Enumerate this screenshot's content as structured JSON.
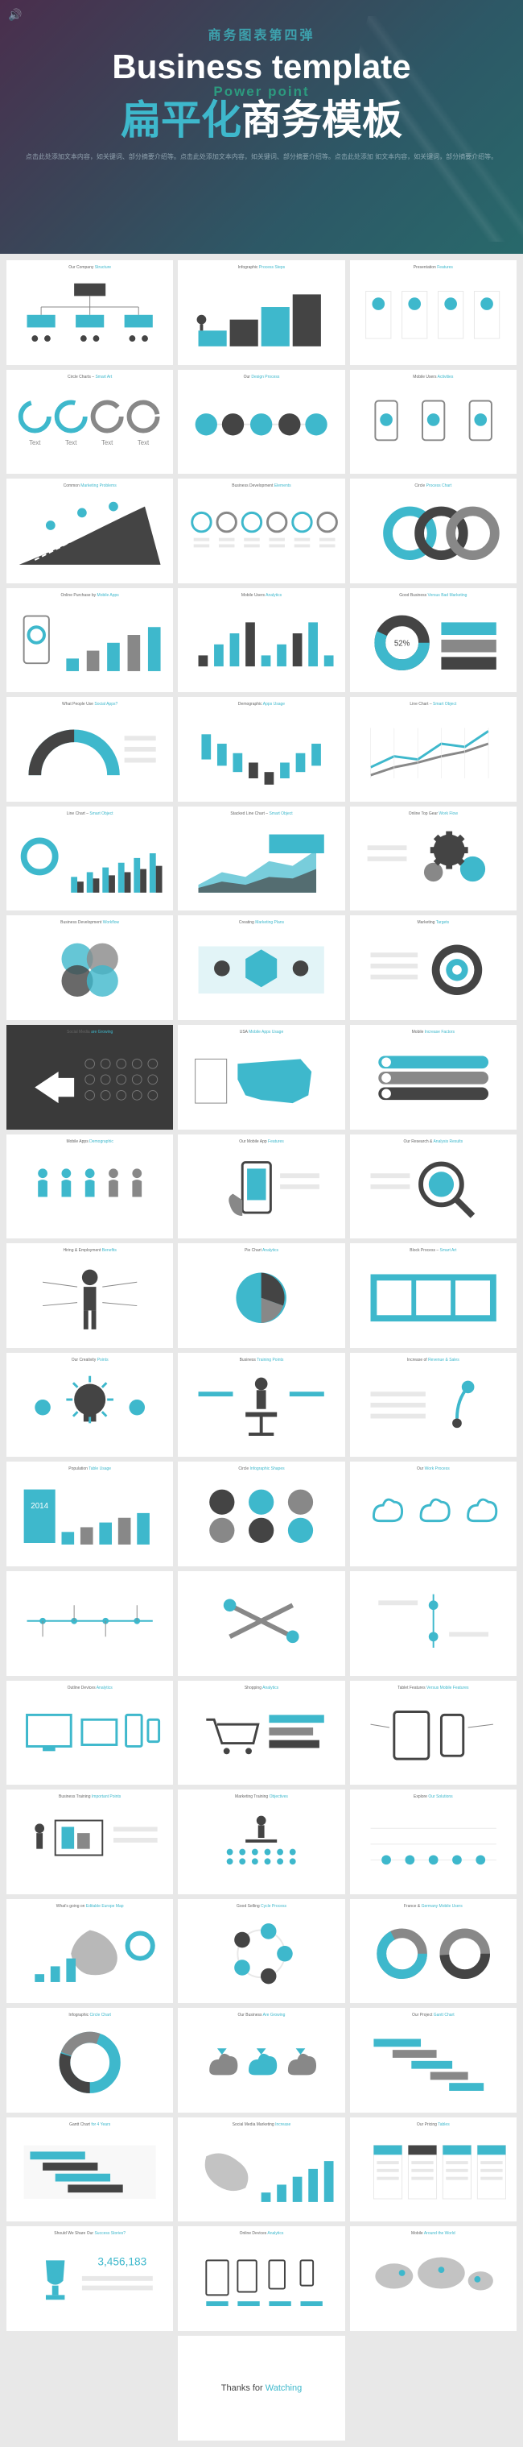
{
  "hero": {
    "subtitle_cn": "商务图表第四弹",
    "title_en": "Business template",
    "powerpoint": "Power point",
    "main_flat": "扁平化",
    "main_biz": "商务模板",
    "desc": "点击此处添加文本内容，如关键词、部分摘要介绍等。点击此处添加文本内容，如关键词、部分摘要介绍等。点击此处添加 如文本内容，如关键词，部分摘要介绍等。"
  },
  "colors": {
    "primary": "#3eb8cc",
    "gray": "#888888",
    "dark": "#444444",
    "light": "#e8e8e8",
    "white": "#ffffff"
  },
  "slides": [
    {
      "t": "Our Company",
      "h": "Structure",
      "type": "org"
    },
    {
      "t": "Infographic",
      "h": "Process Steps",
      "type": "steps"
    },
    {
      "t": "Presentation",
      "h": "Features",
      "type": "columns"
    },
    {
      "t": "Circle Charts –",
      "h": "Smart Art",
      "type": "circles4"
    },
    {
      "t": "Our",
      "h": "Design Process",
      "type": "hcircles"
    },
    {
      "t": "Mobile Users",
      "h": "Activities",
      "type": "phone3"
    },
    {
      "t": "Common",
      "h": "Marketing Problems",
      "type": "road"
    },
    {
      "t": "Business Development",
      "h": "Elements",
      "type": "iconrow"
    },
    {
      "t": "Circle",
      "h": "Process Chart",
      "type": "ring3"
    },
    {
      "t": "Online Purchase by",
      "h": "Mobile Apps",
      "type": "phonebar"
    },
    {
      "t": "Mobile Users",
      "h": "Analytics",
      "type": "bars"
    },
    {
      "t": "Good Business",
      "h": "Versus Bad Marketing",
      "type": "donut"
    },
    {
      "t": "What People Use",
      "h": "Social Apps?",
      "type": "arc"
    },
    {
      "t": "Demographic",
      "h": "Apps Usage",
      "type": "pyramid"
    },
    {
      "t": "Line Chart –",
      "h": "Smart Object",
      "type": "line"
    },
    {
      "t": "Line Chart –",
      "h": "Smart Object",
      "type": "barcombo"
    },
    {
      "t": "Stacked Line Chart –",
      "h": "Smart Object",
      "type": "stacked"
    },
    {
      "t": "Online Top Gear",
      "h": "Work Flow",
      "type": "gears"
    },
    {
      "t": "Business Development",
      "h": "Workflow",
      "type": "venn4"
    },
    {
      "t": "Creating",
      "h": "Marketing Plans",
      "type": "hex"
    },
    {
      "t": "Marketing",
      "h": "Targets",
      "type": "target"
    },
    {
      "t": "Social Media",
      "h": "are Growing",
      "type": "social",
      "dark": true
    },
    {
      "t": "USA",
      "h": "Mobile Apps Usage",
      "type": "usa"
    },
    {
      "t": "Mobile",
      "h": "Increase Factors",
      "type": "listbox"
    },
    {
      "t": "Mobile Apps",
      "h": "Demographic",
      "type": "people"
    },
    {
      "t": "Our Mobile App",
      "h": "Features",
      "type": "hand"
    },
    {
      "t": "Our Research &",
      "h": "Analysis Results",
      "type": "magnify"
    },
    {
      "t": "Hiring & Employment",
      "h": "Benefits",
      "type": "person"
    },
    {
      "t": "Pie Chart",
      "h": "Analytics",
      "type": "pie"
    },
    {
      "t": "Block Process –",
      "h": "Smart Art",
      "type": "blocks"
    },
    {
      "t": "Our Creativity",
      "h": "Points",
      "type": "bulb"
    },
    {
      "t": "Business",
      "h": "Training Points",
      "type": "stand"
    },
    {
      "t": "Increase of",
      "h": "Revenue & Sales",
      "type": "growth"
    },
    {
      "t": "Population",
      "h": "Table Usage",
      "type": "table"
    },
    {
      "t": "Circle",
      "h": "Infographic Shapes",
      "type": "circgrid"
    },
    {
      "t": "Our",
      "h": "Work Process",
      "type": "clouds"
    },
    {
      "t": "",
      "h": "",
      "type": "timeline"
    },
    {
      "t": "",
      "h": "",
      "type": "wrench"
    },
    {
      "t": "",
      "h": "",
      "type": "vline"
    },
    {
      "t": "Outline Devices",
      "h": "Analytics",
      "type": "devices"
    },
    {
      "t": "Shopping",
      "h": "Analytics",
      "type": "cart"
    },
    {
      "t": "Tablet Features",
      "h": "Versus Mobile Features",
      "type": "tabphone"
    },
    {
      "t": "Business Training",
      "h": "Important Points",
      "type": "board"
    },
    {
      "t": "Marketing Training",
      "h": "Objectives",
      "type": "audience"
    },
    {
      "t": "Explore",
      "h": "Our Solutions",
      "type": "linegrid"
    },
    {
      "t": "What's going on",
      "h": "Editable Europe Map",
      "type": "europe"
    },
    {
      "t": "Good Selling",
      "h": "Cycle Process",
      "type": "cycle"
    },
    {
      "t": "France &",
      "h": "Germany Mobile Users",
      "type": "donut2"
    },
    {
      "t": "Infographic",
      "h": "Circle Chart",
      "type": "ring2"
    },
    {
      "t": "Our Business",
      "h": "Are Growing",
      "type": "cloudup"
    },
    {
      "t": "Our Project",
      "h": "Gantt Chart",
      "type": "gantt"
    },
    {
      "t": "Gantt Chart",
      "h": "for 4 Years",
      "type": "gantt2"
    },
    {
      "t": "Social Media Marketing",
      "h": "Increase",
      "type": "wbars"
    },
    {
      "t": "Our Pricing",
      "h": "Tables",
      "type": "pricing"
    },
    {
      "t": "Should We Share Our",
      "h": "Success Stories?",
      "type": "trophy"
    },
    {
      "t": "Online Devices",
      "h": "Analytics",
      "type": "devrow"
    },
    {
      "t": "Mobile",
      "h": "Around the World",
      "type": "world"
    }
  ],
  "thanks": {
    "t1": "Thanks for ",
    "t2": "Watching"
  }
}
